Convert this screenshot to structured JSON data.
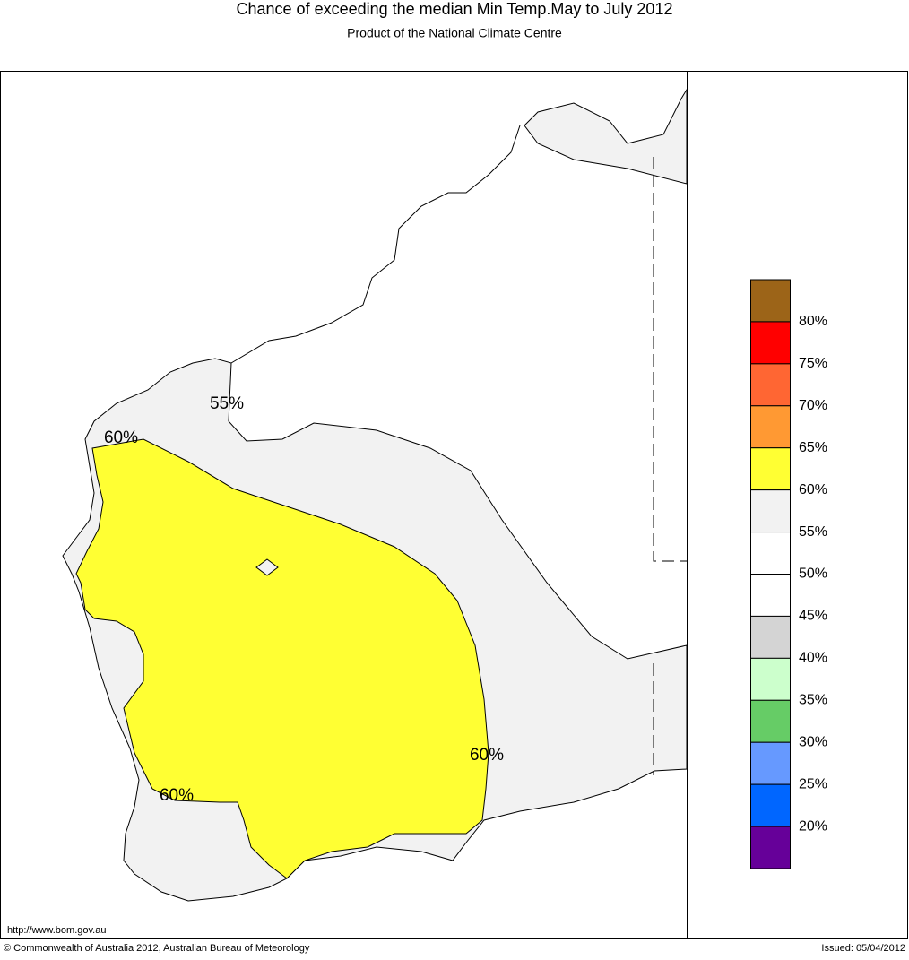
{
  "header": {
    "title": "Chance of exceeding the median Min Temp.May to July 2012",
    "subtitle": "Product of the National Climate Centre"
  },
  "contour_labels": [
    "55%",
    "60%",
    "60%",
    "60%"
  ],
  "legend": {
    "labels": [
      "80%",
      "75%",
      "70%",
      "65%",
      "60%",
      "55%",
      "50%",
      "45%",
      "40%",
      "35%",
      "30%",
      "25%",
      "20%"
    ],
    "colors": [
      "#9c6418",
      "#ff0000",
      "#ff6633",
      "#ff9933",
      "#ffff33",
      "#f2f2f2",
      "#ffffff",
      "#ffffff",
      "#d4d4d4",
      "#ccffcc",
      "#66cc66",
      "#6699ff",
      "#0066ff",
      "#660099"
    ]
  },
  "footer": {
    "url": "http://www.bom.gov.au",
    "copyright": "© Commonwealth of Australia 2012, Australian Bureau of Meteorology",
    "issued": "Issued: 05/04/2012"
  }
}
